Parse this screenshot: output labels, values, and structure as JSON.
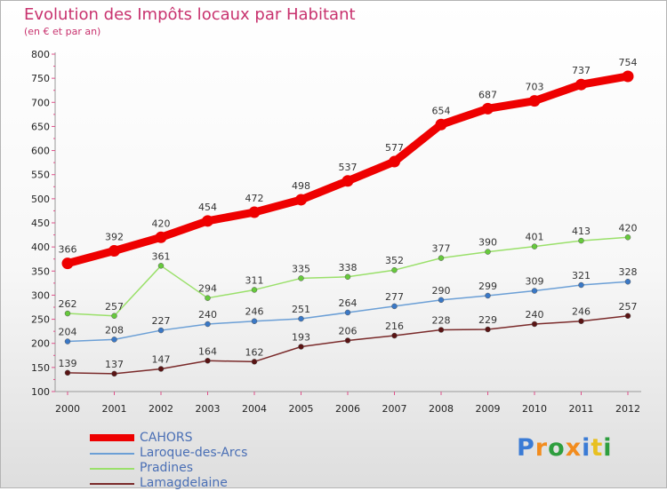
{
  "title": "Evolution des Impôts locaux par Habitant",
  "subtitle": "(en € et par an)",
  "logo_text": "Proxiti",
  "chart_data": {
    "type": "line",
    "title": "Evolution des Impôts locaux par Habitant",
    "subtitle": "(en € et par an)",
    "xlabel": "",
    "ylabel": "",
    "categories": [
      "2000",
      "2001",
      "2002",
      "2003",
      "2004",
      "2005",
      "2006",
      "2007",
      "2008",
      "2009",
      "2010",
      "2011",
      "2012"
    ],
    "ylim": [
      100,
      800
    ],
    "yticks": [
      100,
      150,
      200,
      250,
      300,
      350,
      400,
      450,
      500,
      550,
      600,
      650,
      700,
      750,
      800
    ],
    "grid": false,
    "legend_position": "bottom-left",
    "series": [
      {
        "name": "CAHORS",
        "values": [
          366,
          392,
          420,
          454,
          472,
          498,
          537,
          577,
          654,
          687,
          703,
          737,
          754
        ],
        "color": "#ee0000",
        "marker": "#cc0000",
        "emphasis": true
      },
      {
        "name": "Laroque-des-Arcs",
        "values": [
          204,
          208,
          227,
          240,
          246,
          251,
          264,
          277,
          290,
          299,
          309,
          321,
          328
        ],
        "color": "#6b9fd6",
        "marker": "#3a78c6",
        "emphasis": false
      },
      {
        "name": "Pradines",
        "values": [
          262,
          257,
          361,
          294,
          311,
          335,
          338,
          352,
          377,
          390,
          401,
          413,
          420
        ],
        "color": "#9ae06a",
        "marker": "#66c93c",
        "emphasis": false
      },
      {
        "name": "Lamagdelaine",
        "values": [
          139,
          137,
          147,
          164,
          162,
          193,
          206,
          216,
          228,
          229,
          240,
          246,
          257
        ],
        "color": "#7a2a2a",
        "marker": "#5a1414",
        "emphasis": false
      }
    ]
  }
}
